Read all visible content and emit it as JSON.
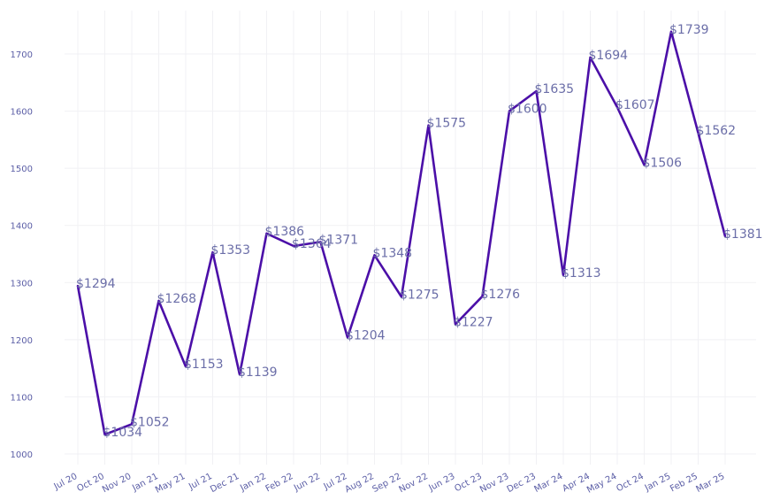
{
  "chart_data": {
    "type": "line",
    "title": "",
    "xlabel": "",
    "ylabel": "",
    "ylim": [
      1000,
      1750
    ],
    "yticks": [
      1000,
      1100,
      1200,
      1300,
      1400,
      1500,
      1600,
      1700
    ],
    "grid": true,
    "legend": "none",
    "color": "#4b0fa8",
    "label_prefix": "$",
    "categories": [
      "Jul 20",
      "Oct 20",
      "Nov 20",
      "Jan 21",
      "May 21",
      "Jul 21",
      "Dec 21",
      "Jan 22",
      "Feb 22",
      "Jun 22",
      "Jul 22",
      "Aug 22",
      "Sep 22",
      "Nov 22",
      "Jun 23",
      "Oct 23",
      "Nov 23",
      "Dec 23",
      "Mar 24",
      "Apr 24",
      "May 24",
      "Oct 24",
      "Jan 25",
      "Feb 25",
      "Mar 25"
    ],
    "values": [
      1294,
      1034,
      1052,
      1268,
      1153,
      1353,
      1139,
      1386,
      1364,
      1371,
      1204,
      1348,
      1275,
      1575,
      1227,
      1276,
      1600,
      1635,
      1313,
      1694,
      1607,
      1506,
      1739,
      1562,
      1381
    ]
  }
}
